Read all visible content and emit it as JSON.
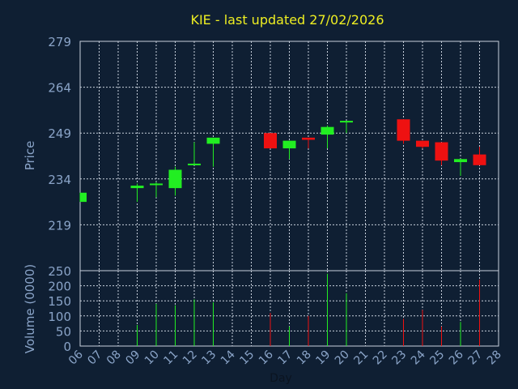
{
  "chart_data": {
    "type": "candlestick",
    "title": "KIE - last updated 27/02/2026",
    "xlabel": "Day",
    "price_ylabel": "Price",
    "volume_ylabel": "Volume (0000)",
    "price_ylim": [
      204,
      279
    ],
    "price_ticks": [
      279,
      264,
      249,
      234,
      219
    ],
    "volume_ylim": [
      0,
      250
    ],
    "volume_ticks": [
      250,
      200,
      150,
      100,
      50,
      0
    ],
    "x_ticks": [
      "06",
      "07",
      "08",
      "09",
      "10",
      "11",
      "12",
      "13",
      "14",
      "15",
      "16",
      "17",
      "18",
      "19",
      "20",
      "21",
      "22",
      "23",
      "24",
      "25",
      "26",
      "27",
      "28"
    ],
    "grid": true,
    "colors": {
      "background": "#0f1f33",
      "up": "#22ee22",
      "down": "#ee1111",
      "title": "#eeee22",
      "axis_text": "#8aa4c8"
    },
    "candles": [
      {
        "day": "06",
        "open": 226.5,
        "close": 229.5,
        "high": 229.5,
        "low": 226.5,
        "volume": 0
      },
      {
        "day": "09",
        "open": 231.0,
        "close": 231.8,
        "high": 232.5,
        "low": 226.5,
        "volume": 70
      },
      {
        "day": "10",
        "open": 232.0,
        "close": 232.5,
        "high": 233.0,
        "low": 228.0,
        "volume": 140
      },
      {
        "day": "11",
        "open": 231.0,
        "close": 237.0,
        "high": 238.0,
        "low": 228.5,
        "volume": 135
      },
      {
        "day": "12",
        "open": 238.5,
        "close": 239.0,
        "high": 246.0,
        "low": 238.5,
        "volume": 155
      },
      {
        "day": "13",
        "open": 245.5,
        "close": 247.5,
        "high": 247.5,
        "low": 238.0,
        "volume": 145
      },
      {
        "day": "16",
        "open": 249.0,
        "close": 244.0,
        "high": 249.0,
        "low": 244.0,
        "volume": 110
      },
      {
        "day": "17",
        "open": 244.0,
        "close": 246.5,
        "high": 246.5,
        "low": 240.5,
        "volume": 65
      },
      {
        "day": "18",
        "open": 247.5,
        "close": 246.8,
        "high": 247.5,
        "low": 244.0,
        "volume": 100
      },
      {
        "day": "19",
        "open": 248.5,
        "close": 251.0,
        "high": 251.5,
        "low": 244.0,
        "volume": 240
      },
      {
        "day": "20",
        "open": 252.5,
        "close": 253.0,
        "high": 253.0,
        "low": 249.0,
        "volume": 175
      },
      {
        "day": "23",
        "open": 253.5,
        "close": 246.5,
        "high": 253.5,
        "low": 245.5,
        "volume": 90
      },
      {
        "day": "24",
        "open": 246.5,
        "close": 244.5,
        "high": 246.5,
        "low": 244.0,
        "volume": 120
      },
      {
        "day": "25",
        "open": 246.0,
        "close": 240.0,
        "high": 246.0,
        "low": 238.5,
        "volume": 65
      },
      {
        "day": "26",
        "open": 239.5,
        "close": 240.5,
        "high": 240.5,
        "low": 235.0,
        "volume": 80
      },
      {
        "day": "27",
        "open": 242.0,
        "close": 238.5,
        "high": 244.5,
        "low": 238.5,
        "volume": 220
      }
    ]
  }
}
